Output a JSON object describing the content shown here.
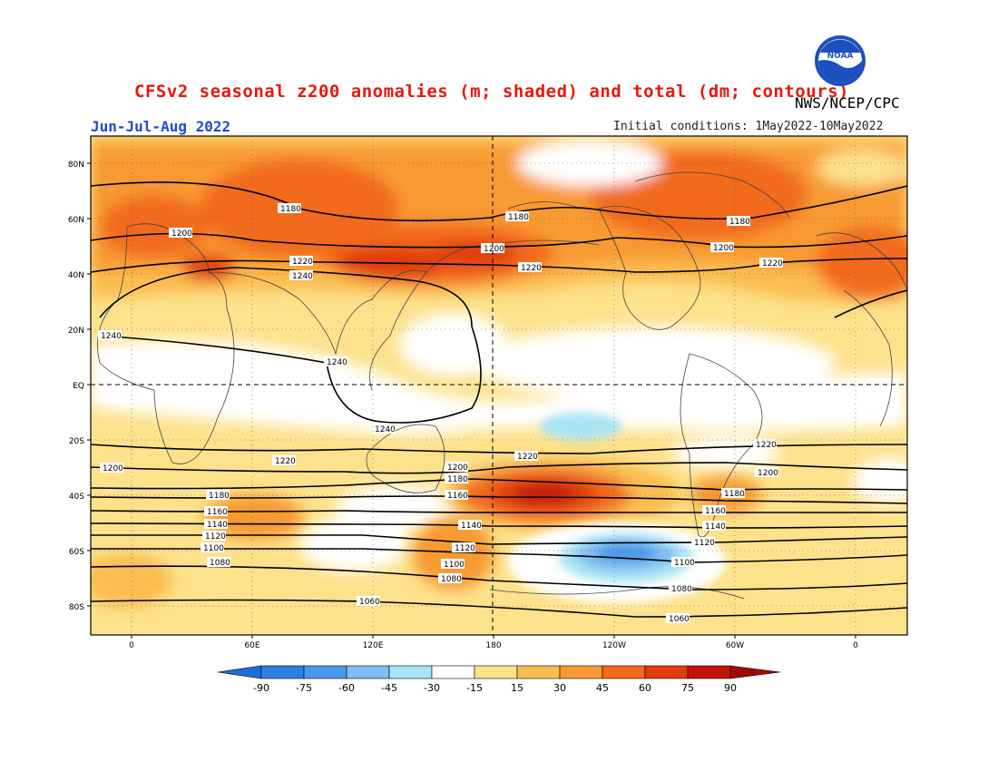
{
  "header": {
    "title": "CFSv2 seasonal z200 anomalies (m; shaded) and total (dm; contours)",
    "agency": "NWS/NCEP/CPC",
    "period": "Jun-Jul-Aug 2022",
    "initial_conditions": "Initial conditions: 1May2022-10May2022",
    "logo_text": "NOAA"
  },
  "axes": {
    "lat_ticks": [
      "80N",
      "60N",
      "40N",
      "20N",
      "EQ",
      "20S",
      "40S",
      "60S",
      "80S"
    ],
    "lon_ticks": [
      "0",
      "60E",
      "120E",
      "180",
      "120W",
      "60W",
      "0"
    ]
  },
  "colorbar": {
    "ticks": [
      "-90",
      "-75",
      "-60",
      "-45",
      "-30",
      "-15",
      "15",
      "30",
      "45",
      "60",
      "75",
      "90"
    ],
    "colors": [
      "#1f6ed8",
      "#2f80e4",
      "#4a98ec",
      "#7fbdf2",
      "#a8e4f4",
      "#ffffff",
      "#fde28c",
      "#fbbd50",
      "#f89a33",
      "#f26a1a",
      "#e03c0e",
      "#c21408",
      "#a00a04"
    ]
  },
  "contours": {
    "labels": [
      "1180",
      "1200",
      "1220",
      "1240",
      "1160",
      "1140",
      "1120",
      "1100",
      "1080",
      "1060"
    ]
  },
  "shading_colors": {
    "weak_pos": "#fde28c",
    "mod_pos": "#fbbd50",
    "strong_pos": "#f89a33",
    "vstrong_pos": "#f26a1a",
    "max_pos": "#e03c0e",
    "peak_pos": "#c21408",
    "weak_neg": "#a8e4f4",
    "mod_neg": "#7fbdf2",
    "strong_neg": "#4a98ec"
  }
}
